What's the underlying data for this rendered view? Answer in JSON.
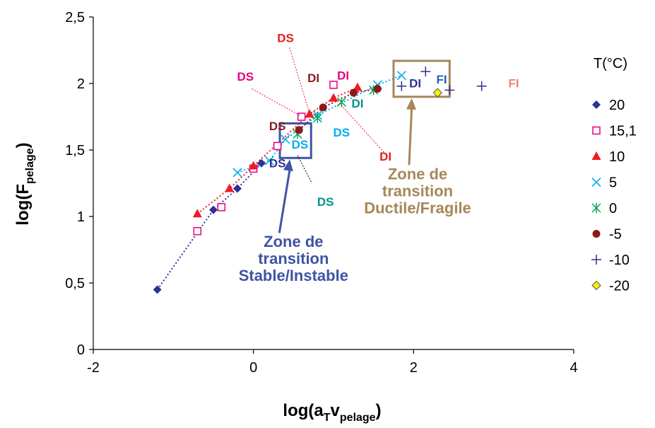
{
  "chart_data": {
    "type": "scatter",
    "xlabel": {
      "pre": "log(a",
      "sub1": "T",
      "mid": "v",
      "sub2": "pelage",
      "post": ")"
    },
    "ylabel": {
      "pre": "log(F",
      "sub": "pelage",
      "post": ")"
    },
    "xlim": [
      -2,
      4
    ],
    "ylim": [
      0,
      2.5
    ],
    "xticks": [
      -2,
      0,
      2,
      4
    ],
    "yticks": [
      0,
      0.5,
      1,
      1.5,
      2,
      2.5
    ],
    "xtick_labels": [
      "-2",
      "0",
      "2",
      "4"
    ],
    "ytick_labels": [
      "0",
      "0,5",
      "1",
      "1,5",
      "2",
      "2,5"
    ],
    "legend_title": "T(°C)",
    "legend_position": "right",
    "series": [
      {
        "name": "20",
        "marker": "diamond",
        "color": "#2E3192",
        "dotted_line": true,
        "points": [
          [
            -1.2,
            0.45
          ],
          [
            -0.5,
            1.05
          ],
          [
            -0.2,
            1.21
          ],
          [
            0.1,
            1.4
          ]
        ]
      },
      {
        "name": "15,1",
        "marker": "square-open",
        "color": "#E6007E",
        "dotted_line": false,
        "points": [
          [
            -0.7,
            0.89
          ],
          [
            -0.4,
            1.07
          ],
          [
            0.0,
            1.36
          ],
          [
            0.3,
            1.53
          ],
          [
            0.6,
            1.75
          ],
          [
            1.0,
            1.99
          ]
        ]
      },
      {
        "name": "10",
        "marker": "triangle",
        "color": "#ED1C24",
        "dotted_line": true,
        "points": [
          [
            -0.7,
            1.02
          ],
          [
            -0.3,
            1.21
          ],
          [
            0.0,
            1.38
          ],
          [
            0.7,
            1.77
          ],
          [
            1.0,
            1.89
          ],
          [
            1.3,
            1.97
          ]
        ]
      },
      {
        "name": "5",
        "marker": "x",
        "color": "#00AEEF",
        "dotted_line": true,
        "points": [
          [
            -0.2,
            1.33
          ],
          [
            0.2,
            1.42
          ],
          [
            0.4,
            1.58
          ],
          [
            0.8,
            1.76
          ],
          [
            1.55,
            1.99
          ],
          [
            1.85,
            2.06
          ]
        ]
      },
      {
        "name": "0",
        "marker": "asterisk",
        "color": "#00A651",
        "dotted_line": false,
        "points": [
          [
            0.55,
            1.62
          ],
          [
            0.8,
            1.74
          ],
          [
            1.1,
            1.86
          ],
          [
            1.5,
            1.95
          ]
        ]
      },
      {
        "name": "-5",
        "marker": "circle",
        "color": "#8B1A1A",
        "dotted_line": true,
        "points": [
          [
            0.57,
            1.65
          ],
          [
            0.87,
            1.82
          ],
          [
            1.25,
            1.93
          ],
          [
            1.55,
            1.96
          ]
        ]
      },
      {
        "name": "-10",
        "marker": "plus",
        "color": "#2E3192",
        "dotted_line": false,
        "points": [
          [
            1.85,
            1.98
          ],
          [
            2.15,
            2.09
          ],
          [
            2.45,
            1.95
          ],
          [
            2.85,
            1.98
          ]
        ]
      },
      {
        "name": "-20",
        "marker": "diamond-yellow",
        "color": "#FFF200",
        "dotted_line": false,
        "points": [
          [
            2.3,
            1.93
          ]
        ]
      }
    ],
    "annotations": [
      {
        "text": "DS",
        "x": 0.4,
        "y": 2.31,
        "color": "#E31E24"
      },
      {
        "text": "DS",
        "x": -0.1,
        "y": 2.02,
        "color": "#E6007E"
      },
      {
        "text": "DI",
        "x": 0.75,
        "y": 2.01,
        "color": "#8B1A1A"
      },
      {
        "text": "DI",
        "x": 1.12,
        "y": 2.03,
        "color": "#E6007E"
      },
      {
        "text": "DI",
        "x": 1.3,
        "y": 1.82,
        "color": "#00938A"
      },
      {
        "text": "DS",
        "x": 1.1,
        "y": 1.6,
        "color": "#00AEEF"
      },
      {
        "text": "DS",
        "x": 0.3,
        "y": 1.65,
        "color": "#8B1A1A"
      },
      {
        "text": "DS",
        "x": 0.58,
        "y": 1.51,
        "color": "#00AEEF"
      },
      {
        "text": "DS",
        "x": 0.3,
        "y": 1.37,
        "color": "#2E3192"
      },
      {
        "text": "DI",
        "x": 1.65,
        "y": 1.42,
        "color": "#E31E24"
      },
      {
        "text": "DS",
        "x": 0.9,
        "y": 1.08,
        "color": "#00938A"
      },
      {
        "text": "DI",
        "x": 2.02,
        "y": 1.97,
        "color": "#2E3192"
      },
      {
        "text": "FI",
        "x": 2.35,
        "y": 2.0,
        "color": "#1F63B5"
      },
      {
        "text": "FI",
        "x": 3.25,
        "y": 1.97,
        "color": "#F08080"
      }
    ],
    "zones": [
      {
        "lines": [
          "Zone de",
          "transition",
          "Stable/Instable"
        ],
        "color": "#3F54A3",
        "box_x": [
          0.33,
          0.72
        ],
        "box_y": [
          1.44,
          1.7
        ],
        "label_x": 0.5,
        "label_y": 0.77
      },
      {
        "lines": [
          "Zone de",
          "transition",
          "Ductile/Fragile"
        ],
        "color": "#A6875A",
        "box_x": [
          1.75,
          2.45
        ],
        "box_y": [
          1.9,
          2.17
        ],
        "label_x": 2.05,
        "label_y": 1.28
      }
    ]
  }
}
